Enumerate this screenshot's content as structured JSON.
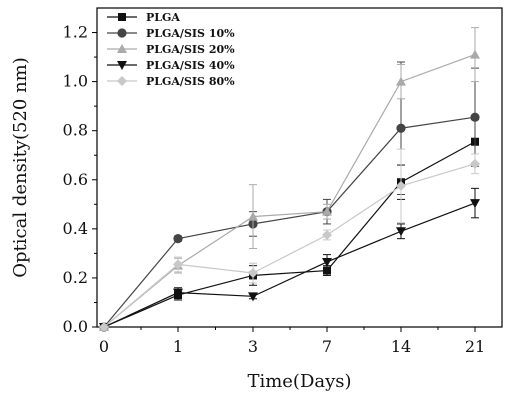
{
  "chart_data": {
    "type": "line",
    "xlabel": "Time(Days)",
    "ylabel": "Optical density(520 nm)",
    "x_tick_labels": [
      "0",
      "1",
      "3",
      "7",
      "14",
      "21"
    ],
    "x_categories": [
      "1",
      "3",
      "7",
      "14",
      "21"
    ],
    "y_ticks": [
      "0.0",
      "0.2",
      "0.4",
      "0.6",
      "0.8",
      "1.0",
      "1.2"
    ],
    "ylim": [
      0.0,
      1.3
    ],
    "grid": false,
    "legend_position": "top-left",
    "series": [
      {
        "name": "PLGA",
        "color": "#111111",
        "marker": "square",
        "x": [
          "0",
          "1",
          "3",
          "7",
          "14",
          "21"
        ],
        "values": [
          0.0,
          0.13,
          0.21,
          0.23,
          0.59,
          0.755
        ],
        "errors": [
          0.0,
          0.02,
          0.04,
          0.02,
          0.07,
          0.09
        ]
      },
      {
        "name": "PLGA/SIS 10%",
        "color": "#444444",
        "marker": "circle",
        "x": [
          "0",
          "1",
          "3",
          "7",
          "14",
          "21"
        ],
        "values": [
          0.0,
          0.36,
          0.42,
          0.47,
          0.81,
          0.855
        ],
        "errors": [
          0.0,
          0.01,
          0.05,
          0.05,
          0.27,
          0.2
        ]
      },
      {
        "name": "PLGA/SIS 20%",
        "color": "#aaaaaa",
        "marker": "triangle-up",
        "x": [
          "0",
          "1",
          "3",
          "7",
          "14",
          "21"
        ],
        "values": [
          0.0,
          0.25,
          0.45,
          0.47,
          1.0,
          1.11
        ],
        "errors": [
          0.0,
          0.03,
          0.13,
          0.03,
          0.07,
          0.11
        ]
      },
      {
        "name": "PLGA/SIS 40%",
        "color": "#111111",
        "marker": "triangle-down",
        "x": [
          "0",
          "1",
          "3",
          "7",
          "14",
          "21"
        ],
        "values": [
          0.0,
          0.14,
          0.125,
          0.265,
          0.39,
          0.505
        ],
        "errors": [
          0.0,
          0.02,
          0.01,
          0.03,
          0.03,
          0.06
        ]
      },
      {
        "name": "PLGA/SIS 80%",
        "color": "#c8c8c8",
        "marker": "diamond",
        "x": [
          "0",
          "1",
          "3",
          "7",
          "14",
          "21"
        ],
        "values": [
          0.0,
          0.255,
          0.22,
          0.375,
          0.575,
          0.665
        ],
        "errors": [
          0.0,
          0.03,
          0.04,
          0.02,
          0.15,
          0.04
        ]
      }
    ]
  }
}
